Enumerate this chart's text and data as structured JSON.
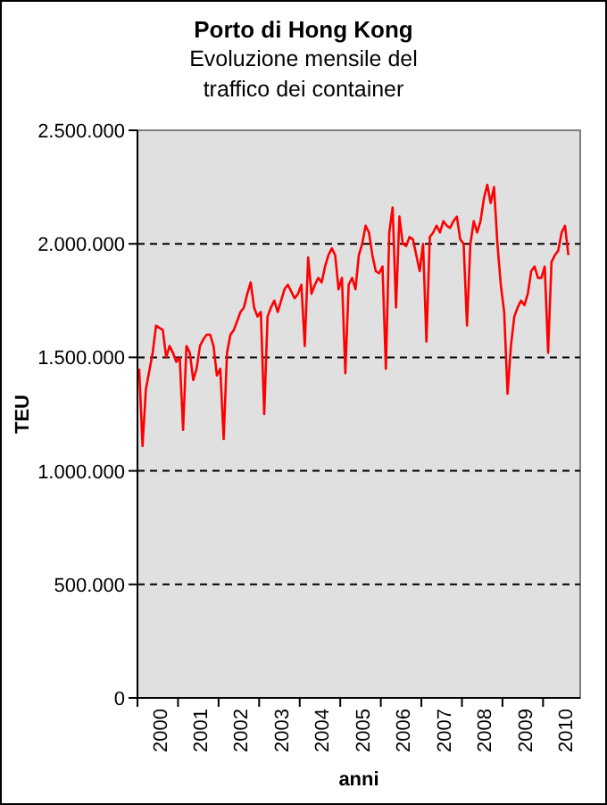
{
  "chart_data": {
    "type": "line",
    "title": "Porto di Hong Kong",
    "subtitle": "Evoluzione mensile del traffico dei container",
    "xlabel": "anni",
    "ylabel": "TEU",
    "categories": [
      null,
      null,
      null,
      null,
      null,
      null,
      "2000",
      null,
      null,
      null,
      null,
      null,
      null,
      null,
      null,
      null,
      null,
      null,
      "2001",
      null,
      null,
      null,
      null,
      null,
      null,
      null,
      null,
      null,
      null,
      null,
      "2002",
      null,
      null,
      null,
      null,
      null,
      null,
      null,
      null,
      null,
      null,
      null,
      "2003",
      null,
      null,
      null,
      null,
      null,
      null,
      null,
      null,
      null,
      null,
      null,
      "2004",
      null,
      null,
      null,
      null,
      null,
      null,
      null,
      null,
      null,
      null,
      null,
      "2005",
      null,
      null,
      null,
      null,
      null,
      null,
      null,
      null,
      null,
      null,
      null,
      "2006",
      null,
      null,
      null,
      null,
      null,
      null,
      null,
      null,
      null,
      null,
      null,
      "2007",
      null,
      null,
      null,
      null,
      null,
      null,
      null,
      null,
      null,
      null,
      null,
      "2008",
      null,
      null,
      null,
      null,
      null,
      null,
      null,
      null,
      null,
      null,
      null,
      "2009",
      null,
      null,
      null,
      null,
      null,
      null,
      null,
      null,
      null,
      null,
      null,
      "2010",
      null,
      null,
      null,
      null
    ],
    "series": [
      {
        "color": "#ff0000",
        "values": [
          1450000,
          1110000,
          1360000,
          1440000,
          1520000,
          1640000,
          1630000,
          1620000,
          1500000,
          1550000,
          1520000,
          1480000,
          1500000,
          1180000,
          1550000,
          1520000,
          1400000,
          1450000,
          1550000,
          1580000,
          1600000,
          1600000,
          1550000,
          1420000,
          1450000,
          1140000,
          1520000,
          1600000,
          1620000,
          1660000,
          1700000,
          1720000,
          1780000,
          1830000,
          1720000,
          1680000,
          1700000,
          1250000,
          1680000,
          1720000,
          1750000,
          1700000,
          1750000,
          1800000,
          1820000,
          1790000,
          1760000,
          1780000,
          1820000,
          1550000,
          1940000,
          1780000,
          1820000,
          1850000,
          1830000,
          1900000,
          1950000,
          1980000,
          1950000,
          1800000,
          1850000,
          1430000,
          1820000,
          1850000,
          1800000,
          1950000,
          2000000,
          2080000,
          2050000,
          1950000,
          1880000,
          1870000,
          1900000,
          1450000,
          2050000,
          2160000,
          1720000,
          2120000,
          2000000,
          1990000,
          2030000,
          2020000,
          1950000,
          1880000,
          2000000,
          1570000,
          2030000,
          2050000,
          2080000,
          2050000,
          2100000,
          2080000,
          2070000,
          2100000,
          2120000,
          2020000,
          2000000,
          1640000,
          2000000,
          2100000,
          2050000,
          2100000,
          2200000,
          2260000,
          2180000,
          2250000,
          2000000,
          1820000,
          1700000,
          1340000,
          1550000,
          1680000,
          1720000,
          1750000,
          1730000,
          1780000,
          1880000,
          1900000,
          1850000,
          1850000,
          1900000,
          1520000,
          1920000,
          1950000,
          1970000,
          2050000,
          2080000,
          1950000,
          null,
          null,
          null
        ]
      }
    ],
    "ylim": [
      0,
      2500000
    ],
    "yticks": [
      {
        "value": 0,
        "label": "0"
      },
      {
        "value": 500000,
        "label": "500.000"
      },
      {
        "value": 1000000,
        "label": "1.000.000"
      },
      {
        "value": 1500000,
        "label": "1.500.000"
      },
      {
        "value": 2000000,
        "label": "2.000.000"
      },
      {
        "value": 2500000,
        "label": "2.500.000"
      }
    ],
    "grid": "y"
  }
}
